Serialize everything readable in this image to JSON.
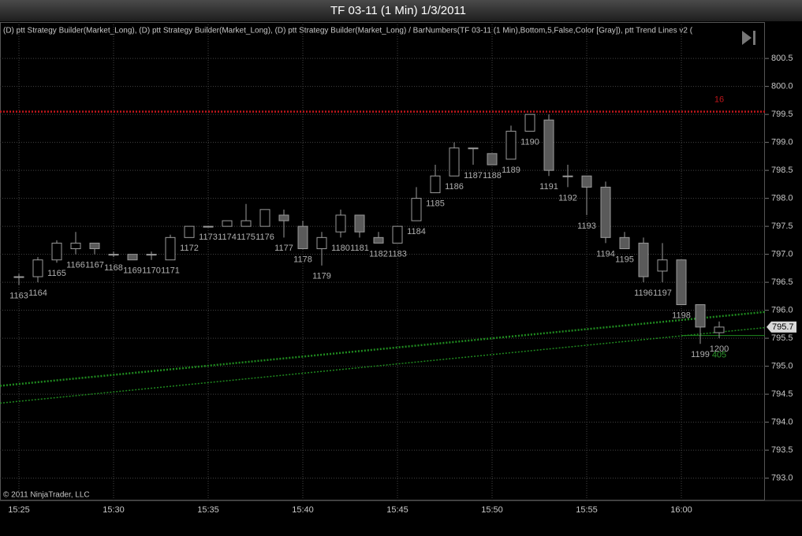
{
  "chart_data": {
    "type": "candlestick",
    "title": "TF 03-11 (1 Min)  1/3/2011",
    "indicators_text": "(D)  ptt Strategy Builder(Market_Long), (D)  ptt Strategy Builder(Market_Long), (D)  ptt Strategy Builder(Market_Long) / BarNumbers(TF 03-11 (1 Min),Bottom,5,False,Color [Gray]),  ptt Trend Lines v2  (",
    "copyright": "© 2011 NinjaTrader, LLC",
    "categories": [
      "15:25",
      null,
      null,
      null,
      null,
      "15:30",
      null,
      null,
      null,
      null,
      "15:35",
      null,
      null,
      null,
      null,
      "15:40",
      null,
      null,
      null,
      null,
      "15:45",
      null,
      null,
      null,
      null,
      "15:50",
      null,
      null,
      null,
      null,
      "15:55",
      null,
      null,
      null,
      null,
      "16:00",
      null,
      null
    ],
    "bar_numbers": [
      1163,
      1164,
      1165,
      1166,
      1167,
      1168,
      1169,
      1170,
      1171,
      1172,
      1173,
      1174,
      1175,
      1176,
      1177,
      1178,
      1179,
      1180,
      1181,
      1182,
      1183,
      1184,
      1185,
      1186,
      1187,
      1188,
      1189,
      1190,
      1191,
      1192,
      1193,
      1194,
      1195,
      1196,
      1197,
      1198,
      1199,
      1200
    ],
    "open": [
      796.6,
      796.6,
      796.9,
      797.1,
      797.2,
      797.0,
      797.0,
      797.0,
      796.9,
      797.3,
      797.5,
      797.5,
      797.5,
      797.5,
      797.7,
      797.5,
      797.1,
      797.4,
      797.7,
      797.3,
      797.2,
      797.6,
      798.1,
      798.4,
      798.9,
      798.8,
      798.7,
      799.2,
      799.4,
      798.4,
      798.4,
      798.2,
      797.3,
      797.2,
      796.7,
      796.9,
      796.1,
      795.6
    ],
    "high": [
      796.65,
      796.95,
      797.25,
      797.4,
      797.2,
      797.05,
      797.0,
      797.05,
      797.35,
      797.5,
      797.5,
      797.6,
      797.9,
      797.8,
      797.8,
      797.6,
      797.4,
      797.8,
      797.7,
      797.4,
      797.5,
      798.2,
      798.6,
      799.0,
      798.9,
      798.8,
      799.3,
      799.5,
      799.5,
      798.6,
      798.4,
      798.3,
      797.4,
      797.3,
      797.2,
      796.9,
      796.1,
      795.8
    ],
    "low": [
      796.45,
      796.5,
      796.85,
      797.0,
      797.0,
      796.95,
      796.9,
      796.9,
      796.9,
      797.3,
      797.5,
      797.5,
      797.5,
      797.5,
      797.3,
      797.1,
      796.8,
      797.3,
      797.3,
      797.2,
      797.2,
      797.6,
      798.1,
      798.4,
      798.6,
      798.6,
      798.7,
      799.2,
      798.4,
      798.2,
      797.7,
      797.2,
      797.1,
      796.5,
      796.5,
      796.1,
      795.4,
      795.5
    ],
    "close": [
      796.6,
      796.9,
      797.2,
      797.2,
      797.1,
      797.0,
      796.9,
      797.0,
      797.3,
      797.5,
      797.5,
      797.6,
      797.6,
      797.8,
      797.6,
      797.1,
      797.3,
      797.7,
      797.4,
      797.2,
      797.5,
      798.0,
      798.4,
      798.9,
      798.9,
      798.6,
      799.2,
      799.5,
      798.5,
      798.4,
      798.2,
      797.3,
      797.1,
      796.6,
      796.9,
      796.1,
      795.7,
      795.7
    ],
    "up_color": "#000000",
    "down_color": "#5a5a5a",
    "wick_color": "#9a9a9a",
    "ylim": [
      792.6,
      801.15
    ],
    "yticks": [
      {
        "value": 793,
        "label": "793.0"
      },
      793.5,
      {
        "value": 794,
        "label": "794.0"
      },
      794.5,
      {
        "value": 795,
        "label": "795.0"
      },
      795.5,
      {
        "value": 796,
        "label": "796.0"
      },
      796.5,
      {
        "value": 797,
        "label": "797.0"
      },
      797.5,
      {
        "value": 798,
        "label": "798.0"
      },
      798.5,
      {
        "value": 799,
        "label": "799.0"
      },
      799.5,
      {
        "value": 800,
        "label": "800.0"
      },
      800.5
    ],
    "grid": true,
    "last_price": 795.7,
    "level_line": {
      "value": 799.55,
      "label": "16",
      "color": "#c0161b"
    },
    "trend_lines": [
      {
        "from": [
          -1,
          794.65
        ],
        "to": [
          39.42,
          795.97
        ],
        "color": "#1f8a1f",
        "width": 2.5
      },
      {
        "from": [
          -1,
          794.34
        ],
        "to": [
          39.42,
          795.69
        ],
        "color": "#1f8a1f",
        "width": 1.5
      }
    ],
    "trend_label": {
      "value": 405,
      "color": "#2e9a2e"
    },
    "stop_line": {
      "value": 795.55,
      "from_index": 35,
      "color": "#1f8a1f"
    }
  }
}
